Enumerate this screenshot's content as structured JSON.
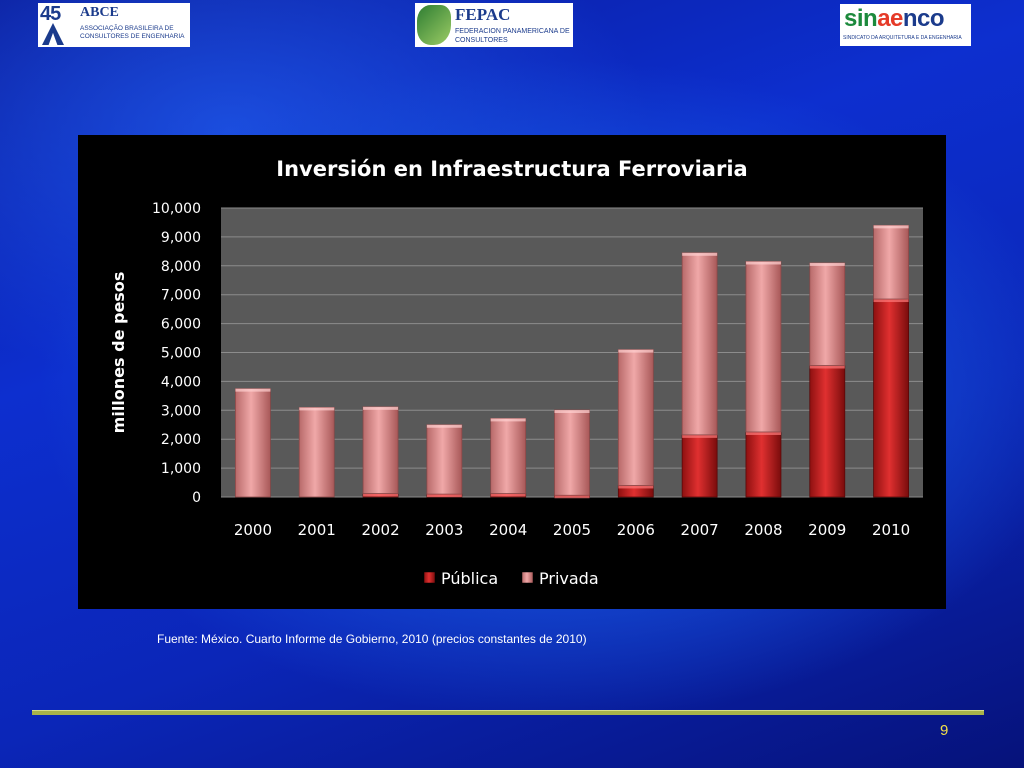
{
  "logos": {
    "abce": {
      "number": "45",
      "name": "ABCE",
      "subtitle": "ASSOCIAÇÃO BRASILEIRA DE CONSULTORES DE ENGENHARIA"
    },
    "fepac": {
      "name": "FEPAC",
      "subtitle": "FEDERACION PANAMERICANA DE CONSULTORES"
    },
    "sinaenco": {
      "name_part1": "sin",
      "name_part2": "ae",
      "name_part3": "nco",
      "subtitle": "SINDICATO DA ARQUITETURA E DA ENGENHARIA"
    }
  },
  "chart_data": {
    "type": "bar",
    "stacked": true,
    "title": "Inversión en Infraestructura Ferroviaria",
    "xlabel": "",
    "ylabel": "millones de pesos",
    "categories": [
      "2000",
      "2001",
      "2002",
      "2003",
      "2004",
      "2005",
      "2006",
      "2007",
      "2008",
      "2009",
      "2010"
    ],
    "series": [
      {
        "name": "Pública",
        "color": "#d42020",
        "values": [
          0,
          0,
          120,
          100,
          120,
          60,
          400,
          2150,
          2250,
          4550,
          6850
        ]
      },
      {
        "name": "Privada",
        "color": "#e89a9a",
        "values": [
          3750,
          3100,
          3000,
          2400,
          2600,
          2950,
          4700,
          6300,
          5900,
          3550,
          2550
        ]
      }
    ],
    "ylim": [
      0,
      10000
    ],
    "yticks": [
      "0",
      "1,000",
      "2,000",
      "3,000",
      "4,000",
      "5,000",
      "6,000",
      "7,000",
      "8,000",
      "9,000",
      "10,000"
    ],
    "grid": true,
    "legend": "bottom"
  },
  "source_note": "Fuente: México. Cuarto Informe de Gobierno, 2010 (precios constantes de 2010)",
  "page_number": "9",
  "colors": {
    "panel": "#000000",
    "plot_bg": "#595959",
    "grid": "#8c8c8c",
    "footer_line": "#a8b34a",
    "page_number": "#f2e04a"
  }
}
